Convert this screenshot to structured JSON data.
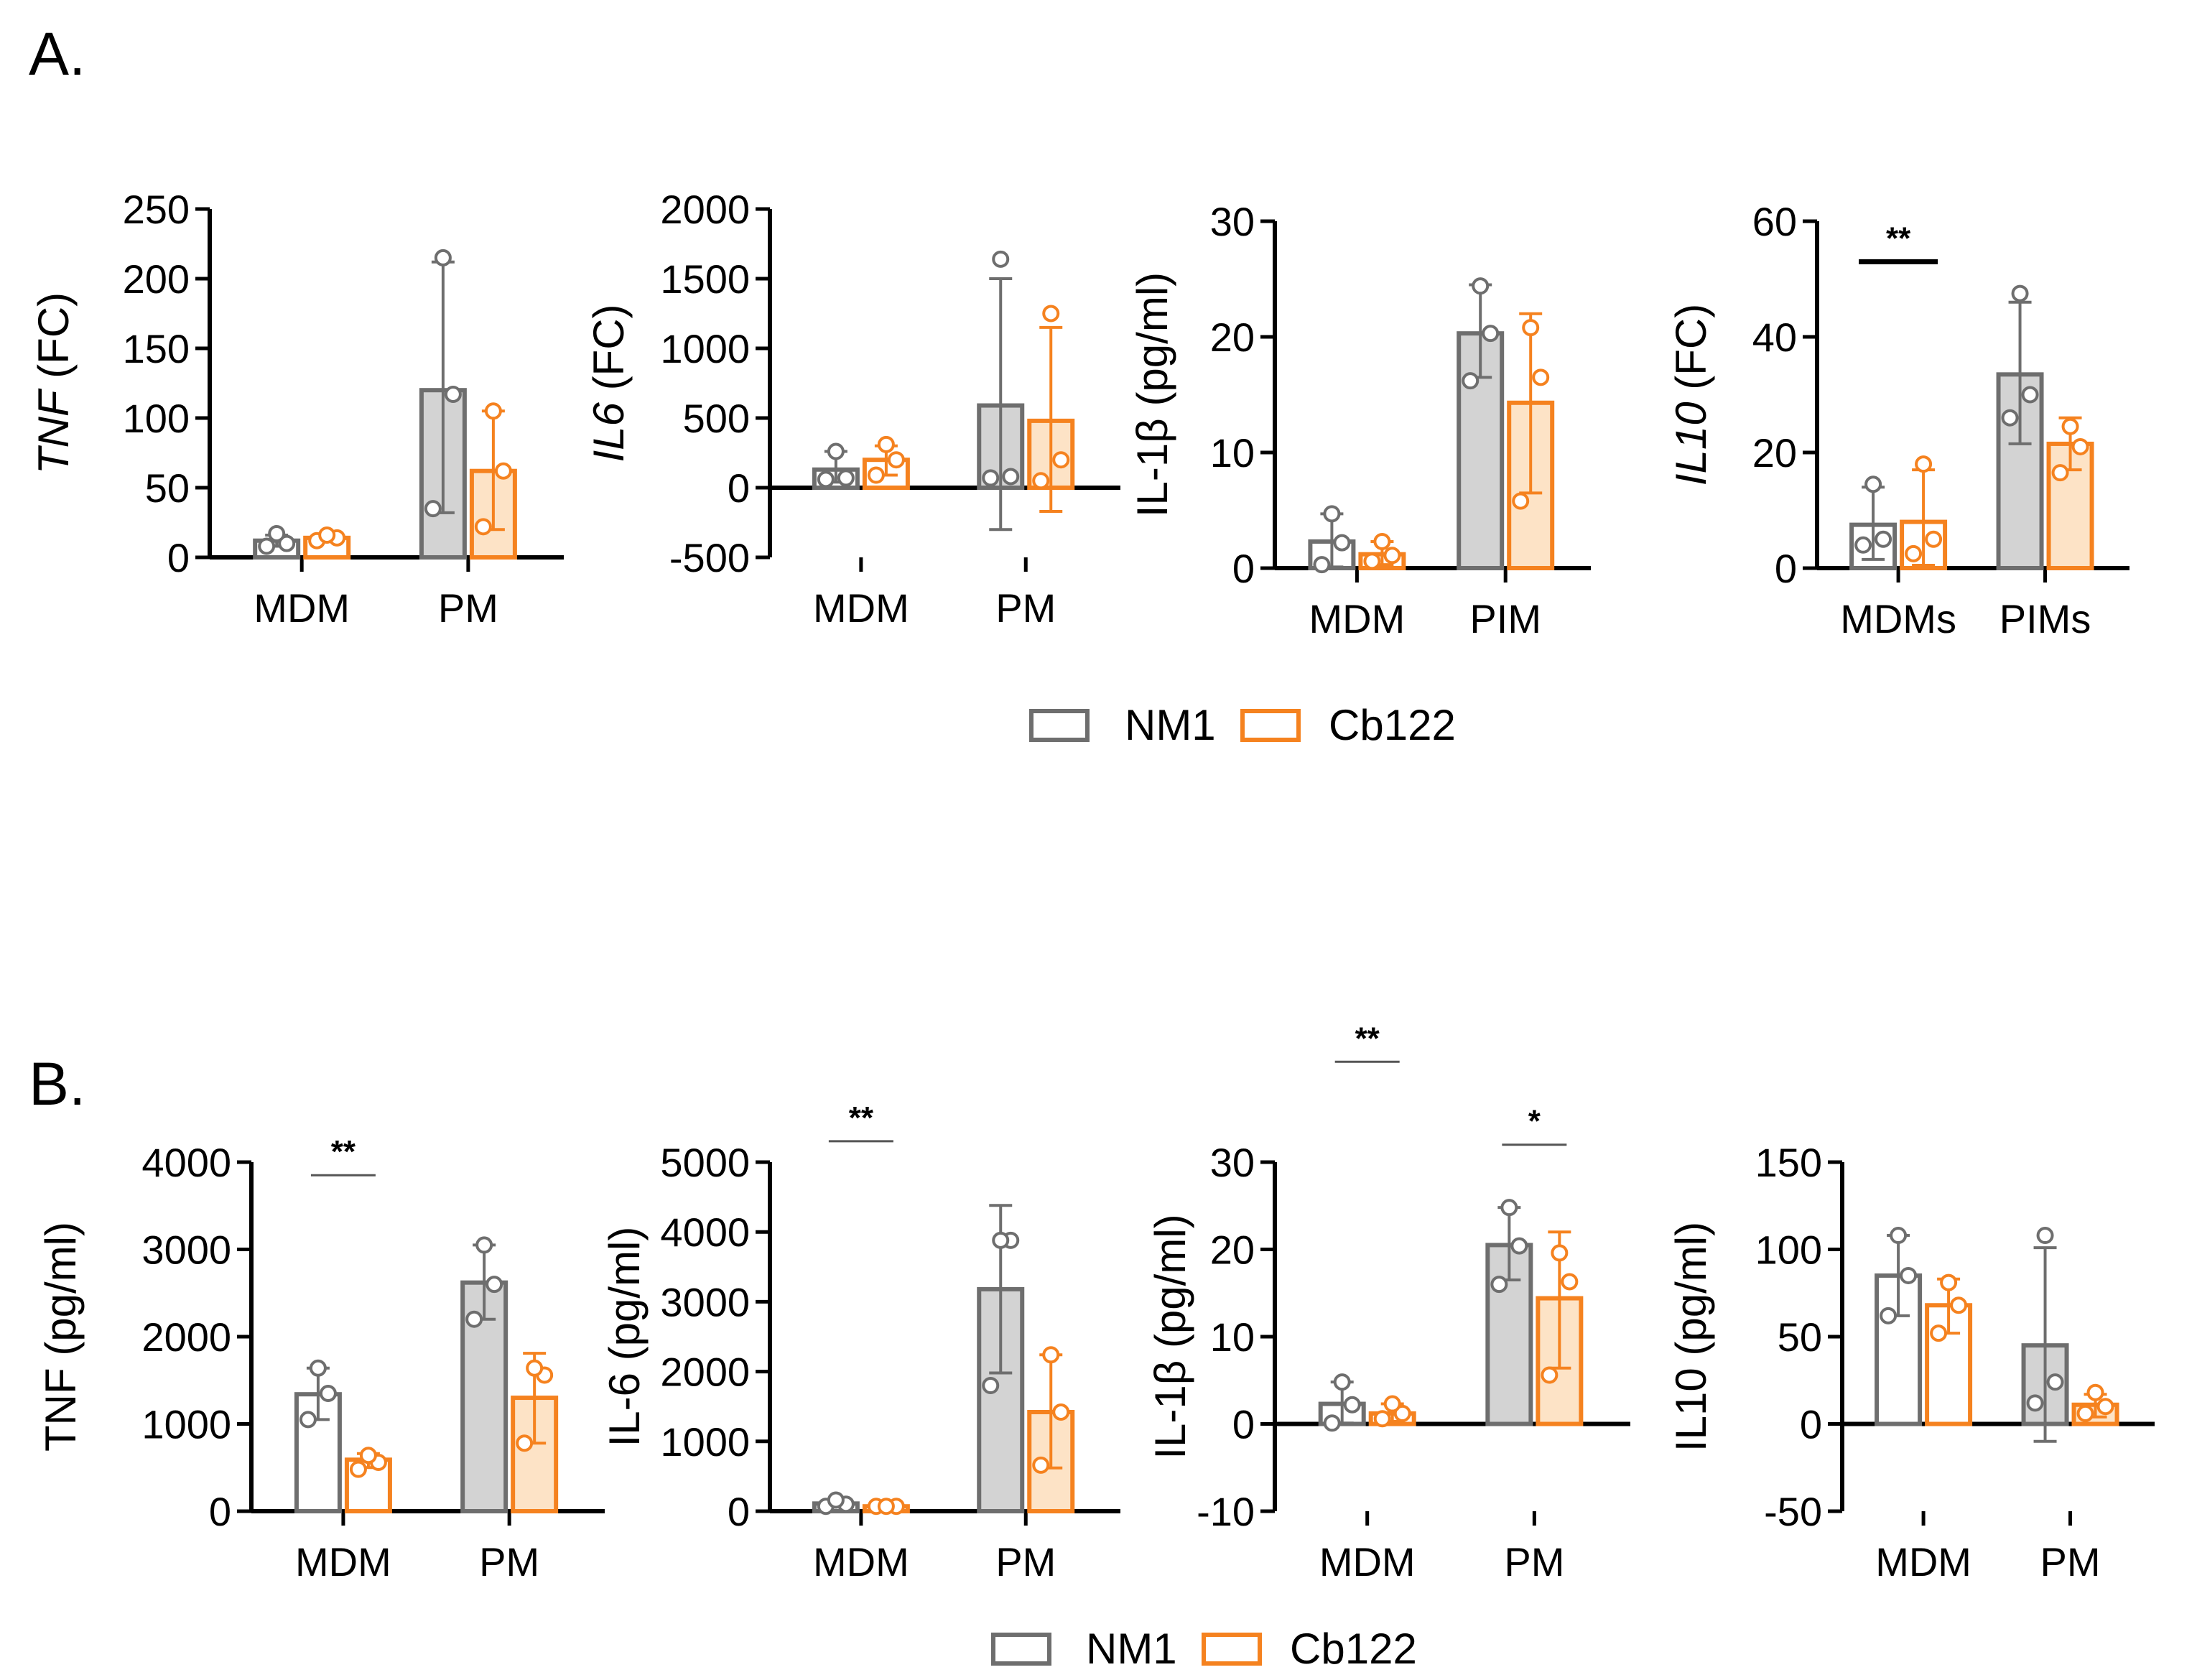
{
  "panels": [
    {
      "letter": "A."
    },
    {
      "letter": "B."
    }
  ],
  "legends": [
    {
      "items": [
        {
          "label": "NM1",
          "color": "#6e6e6e"
        },
        {
          "label": "Cb122",
          "color": "#f5821f"
        }
      ]
    },
    {
      "items": [
        {
          "label": "NM1",
          "color": "#6e6e6e"
        },
        {
          "label": "Cb122",
          "color": "#f5821f"
        }
      ]
    }
  ],
  "colors": {
    "nm1_stroke": "#6e6e6e",
    "nm1_fill": "#d3d3d3",
    "cb122_stroke": "#f5821f",
    "cb122_fill": "#fde3c6"
  },
  "chart_data": [
    {
      "type": "bar",
      "panel": "A.",
      "ylabel": [
        {
          "text": "TNF",
          "italic": true
        },
        {
          "text": " (FC)",
          "italic": false
        }
      ],
      "ylim": [
        0,
        250
      ],
      "yticks": [
        0,
        50,
        100,
        150,
        200,
        250
      ],
      "categories": [
        "MDM",
        "PM"
      ],
      "series": [
        {
          "name": "NM1",
          "values": [
            12,
            120
          ],
          "errors": [
            [
              8,
              16
            ],
            [
              32,
              212
            ]
          ],
          "points": [
            [
              8,
              10,
              17
            ],
            [
              35,
              117,
              215
            ]
          ]
        },
        {
          "name": "Cb122",
          "values": [
            14,
            62
          ],
          "errors": [
            [
              12,
              16
            ],
            [
              20,
              105
            ]
          ],
          "points": [
            [
              12,
              14,
              16
            ],
            [
              22,
              62,
              105
            ]
          ]
        }
      ],
      "significance": []
    },
    {
      "type": "bar",
      "panel": "A.",
      "ylabel": [
        {
          "text": "IL6",
          "italic": true
        },
        {
          "text": " (FC)",
          "italic": false
        }
      ],
      "ylim": [
        -500,
        2000
      ],
      "yticks": [
        -500,
        0,
        500,
        1000,
        1500,
        2000
      ],
      "categories": [
        "MDM",
        "PM"
      ],
      "series": [
        {
          "name": "NM1",
          "values": [
            130,
            590
          ],
          "errors": [
            [
              40,
              260
            ],
            [
              -300,
              1500
            ]
          ],
          "points": [
            [
              60,
              70,
              260
            ],
            [
              70,
              80,
              1640
            ]
          ]
        },
        {
          "name": "Cb122",
          "values": [
            200,
            480
          ],
          "errors": [
            [
              90,
              300
            ],
            [
              -170,
              1150
            ]
          ],
          "points": [
            [
              90,
              200,
              310
            ],
            [
              50,
              200,
              1250
            ]
          ]
        }
      ],
      "significance": []
    },
    {
      "type": "bar",
      "panel": "A.",
      "ylabel": [
        {
          "text": "IL-1β (pg/ml)",
          "italic": false
        }
      ],
      "ylim": [
        0,
        30
      ],
      "yticks": [
        0,
        10,
        20,
        30
      ],
      "categories": [
        "MDM",
        "PIM"
      ],
      "series": [
        {
          "name": "NM1",
          "values": [
            2.3,
            20.3
          ],
          "errors": [
            [
              0.1,
              4.7
            ],
            [
              16.5,
              24.5
            ]
          ],
          "points": [
            [
              0.3,
              2.2,
              4.7
            ],
            [
              16.2,
              20.3,
              24.4
            ]
          ]
        },
        {
          "name": "Cb122",
          "values": [
            1.2,
            14.3
          ],
          "errors": [
            [
              0.3,
              2.3
            ],
            [
              6.5,
              22
            ]
          ],
          "points": [
            [
              0.6,
              1.1,
              2.3
            ],
            [
              5.8,
              16.5,
              20.8
            ]
          ]
        }
      ],
      "significance": []
    },
    {
      "type": "bar",
      "panel": "A.",
      "ylabel": [
        {
          "text": "IL10",
          "italic": true
        },
        {
          "text": " (FC)",
          "italic": false
        }
      ],
      "ylim": [
        0,
        60
      ],
      "yticks": [
        0,
        20,
        40,
        60
      ],
      "categories": [
        "MDMs",
        "PIMs"
      ],
      "series": [
        {
          "name": "NM1",
          "values": [
            7.5,
            33.5
          ],
          "errors": [
            [
              1.5,
              14
            ],
            [
              21.5,
              46
            ]
          ],
          "points": [
            [
              4,
              5,
              14.5
            ],
            [
              26,
              30,
              47.5
            ]
          ]
        },
        {
          "name": "Cb122",
          "values": [
            8,
            21.5
          ],
          "errors": [
            [
              0.5,
              17
            ],
            [
              17,
              26
            ]
          ],
          "points": [
            [
              2.5,
              5,
              18
            ],
            [
              16.5,
              21,
              24.5
            ]
          ]
        }
      ],
      "significance": [
        {
          "from": 0,
          "to": 1,
          "y": 53,
          "label": "**",
          "thick": true
        }
      ]
    },
    {
      "type": "bar",
      "panel": "B.",
      "ylabel": [
        {
          "text": "TNF (pg/ml)",
          "italic": false
        }
      ],
      "ylim": [
        0,
        4000
      ],
      "yticks": [
        0,
        1000,
        2000,
        3000,
        4000
      ],
      "categories": [
        "MDM",
        "PM"
      ],
      "series": [
        {
          "name": "NM1",
          "values": [
            1340,
            2620
          ],
          "errors": [
            [
              1050,
              1640
            ],
            [
              2200,
              3050
            ]
          ],
          "points": [
            [
              1050,
              1350,
              1640
            ],
            [
              2200,
              2600,
              3050
            ]
          ]
        },
        {
          "name": "Cb122",
          "values": [
            590,
            1300
          ],
          "errors": [
            [
              500,
              660
            ],
            [
              780,
              1810
            ]
          ],
          "points": [
            [
              480,
              560,
              640
            ],
            [
              780,
              1560,
              1640
            ]
          ]
        }
      ],
      "significance": [
        {
          "from": 0,
          "to": 1,
          "y": 3850,
          "label": "**",
          "thick": false
        }
      ]
    },
    {
      "type": "bar",
      "panel": "B.",
      "ylabel": [
        {
          "text": "IL-6 (pg/ml)",
          "italic": false
        }
      ],
      "ylim": [
        0,
        5000
      ],
      "yticks": [
        0,
        1000,
        2000,
        3000,
        4000,
        5000
      ],
      "categories": [
        "MDM",
        "PM"
      ],
      "series": [
        {
          "name": "NM1",
          "values": [
            110,
            3180
          ],
          "errors": [
            [
              60,
              170
            ],
            [
              1980,
              4380
            ]
          ],
          "points": [
            [
              70,
              100,
              160
            ],
            [
              1800,
              3880,
              3880
            ]
          ]
        },
        {
          "name": "Cb122",
          "values": [
            70,
            1420
          ],
          "errors": [
            [
              70,
              70
            ],
            [
              620,
              2240
            ]
          ],
          "points": [
            [
              70,
              70,
              70
            ],
            [
              660,
              1420,
              2240
            ]
          ]
        }
      ],
      "significance": [
        {
          "from": 0,
          "to": 1,
          "y": 5300,
          "label": "**",
          "thick": false
        }
      ]
    },
    {
      "type": "bar",
      "panel": "B.",
      "ylabel": [
        {
          "text": "IL-1β (pg/ml)",
          "italic": false
        }
      ],
      "ylim": [
        -10,
        30
      ],
      "yticks": [
        -10,
        0,
        10,
        20,
        30
      ],
      "categories": [
        "MDM",
        "PM"
      ],
      "series": [
        {
          "name": "NM1",
          "values": [
            2.3,
            20.5
          ],
          "errors": [
            [
              0.1,
              4.8
            ],
            [
              16.5,
              24.8
            ]
          ],
          "points": [
            [
              0.1,
              2.2,
              4.8
            ],
            [
              16,
              20.4,
              24.8
            ]
          ]
        },
        {
          "name": "Cb122",
          "values": [
            1.2,
            14.4
          ],
          "errors": [
            [
              0.3,
              2.3
            ],
            [
              6.4,
              22
            ]
          ],
          "points": [
            [
              0.6,
              1.2,
              2.3
            ],
            [
              5.6,
              16.3,
              19.6
            ]
          ]
        }
      ],
      "significance": [
        {
          "from": 0,
          "to": 1,
          "y": 41.5,
          "label": "**",
          "thick": false
        },
        {
          "from": 2,
          "to": 3,
          "y": 32,
          "label": "*",
          "thick": false
        }
      ]
    },
    {
      "type": "bar",
      "panel": "B.",
      "ylabel": [
        {
          "text": "IL10 (pg/ml)",
          "italic": false
        }
      ],
      "ylim": [
        -50,
        150
      ],
      "yticks": [
        -50,
        0,
        50,
        100,
        150
      ],
      "categories": [
        "MDM",
        "PM"
      ],
      "series": [
        {
          "name": "NM1",
          "values": [
            85,
            45
          ],
          "errors": [
            [
              62,
              108
            ],
            [
              -10,
              101
            ]
          ],
          "points": [
            [
              62,
              85,
              108
            ],
            [
              12,
              24,
              108
            ]
          ]
        },
        {
          "name": "Cb122",
          "values": [
            68,
            11
          ],
          "errors": [
            [
              52,
              83
            ],
            [
              4,
              17
            ]
          ],
          "points": [
            [
              52,
              68,
              81
            ],
            [
              6,
              10,
              18
            ]
          ]
        }
      ],
      "significance": []
    }
  ]
}
